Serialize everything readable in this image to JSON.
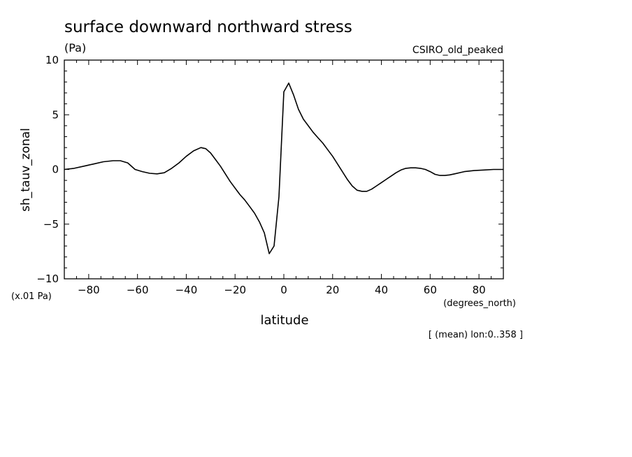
{
  "chart_data": {
    "type": "line",
    "title": "surface downward northward stress",
    "units": "(Pa)",
    "model_label": "CSIRO_old_peaked",
    "ylabel": "sh_tauv_zonal",
    "scale_note": "(x.01 Pa)",
    "xlabel": "latitude",
    "xunits": "(degrees_north)",
    "footnote": "[ (mean) lon:0..358 ]",
    "xlim": [
      -90,
      90
    ],
    "ylim": [
      -10,
      10
    ],
    "x_ticks": [
      {
        "v": -80,
        "label": "-80"
      },
      {
        "v": -60,
        "label": "-60"
      },
      {
        "v": -40,
        "label": "-40"
      },
      {
        "v": -20,
        "label": "-20"
      },
      {
        "v": 0,
        "label": "0"
      },
      {
        "v": 20,
        "label": "20"
      },
      {
        "v": 40,
        "label": "40"
      },
      {
        "v": 60,
        "label": "60"
      },
      {
        "v": 80,
        "label": "80"
      }
    ],
    "y_ticks": [
      {
        "v": -10,
        "label": "-10"
      },
      {
        "v": -5,
        "label": "-5"
      },
      {
        "v": 0,
        "label": "0"
      },
      {
        "v": 5,
        "label": "5"
      },
      {
        "v": 10,
        "label": "10"
      }
    ],
    "series": [
      {
        "x": [
          -90,
          -86,
          -82,
          -78,
          -74,
          -70,
          -67,
          -64,
          -61,
          -58,
          -55,
          -52,
          -49,
          -46,
          -43,
          -40,
          -37,
          -34,
          -32,
          -30,
          -28,
          -26,
          -24,
          -22,
          -20,
          -18,
          -16,
          -14,
          -12,
          -10,
          -8,
          -6,
          -4,
          -2,
          0,
          2,
          4,
          6,
          8,
          10,
          12,
          14,
          16,
          18,
          20,
          22,
          24,
          26,
          28,
          30,
          32,
          34,
          36,
          38,
          40,
          42,
          44,
          46,
          48,
          50,
          52,
          54,
          56,
          58,
          60,
          62,
          64,
          66,
          68,
          70,
          74,
          78,
          82,
          86,
          90
        ],
        "y": [
          0.0,
          0.1,
          0.3,
          0.5,
          0.7,
          0.8,
          0.8,
          0.6,
          0.0,
          -0.2,
          -0.35,
          -0.4,
          -0.3,
          0.1,
          0.6,
          1.2,
          1.7,
          2.0,
          1.9,
          1.5,
          0.9,
          0.3,
          -0.4,
          -1.1,
          -1.7,
          -2.3,
          -2.8,
          -3.4,
          -4.0,
          -4.8,
          -5.8,
          -7.7,
          -7.0,
          -2.5,
          7.1,
          7.9,
          6.8,
          5.5,
          4.6,
          4.0,
          3.4,
          2.9,
          2.4,
          1.8,
          1.2,
          0.5,
          -0.2,
          -0.9,
          -1.5,
          -1.9,
          -2.0,
          -2.0,
          -1.8,
          -1.5,
          -1.2,
          -0.9,
          -0.6,
          -0.3,
          -0.05,
          0.1,
          0.15,
          0.15,
          0.1,
          0.0,
          -0.2,
          -0.45,
          -0.55,
          -0.55,
          -0.5,
          -0.4,
          -0.2,
          -0.1,
          -0.05,
          0.0,
          0.0
        ]
      }
    ]
  }
}
